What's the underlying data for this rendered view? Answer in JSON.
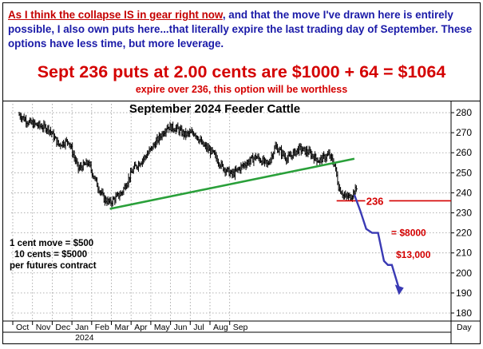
{
  "commentary": {
    "line1_red": "As I think the collapse IS in gear right now",
    "line1_rest": ", and that the move I've drawn here is entirely possible, I also own puts here...that literally expire the last trading day of September. These options have less time, but more leverage.",
    "headline": "Sept 236 puts at 2.00 cents are $1000 + 64 = $1064",
    "subline": "expire over 236, this option will be worthless"
  },
  "chart_data": {
    "type": "line",
    "title": "September 2024 Feeder Cattle",
    "ylim": [
      176,
      286
    ],
    "y_ticks": [
      180,
      190,
      200,
      210,
      220,
      230,
      240,
      250,
      260,
      270,
      280
    ],
    "x_labels": [
      "Oct",
      "Nov",
      "Dec",
      "Jan",
      "Feb",
      "Mar",
      "Apr",
      "May",
      "Jun",
      "Jul",
      "Aug",
      "Sep"
    ],
    "year_label": "2024",
    "axis_unit_label": "Day",
    "colors": {
      "bars": "#000000",
      "trendline": "#2aa03a",
      "strike_line": "#d40000",
      "projection": "#3a3ab4",
      "annotation_text": "#d40000"
    },
    "price_path": [
      [
        0,
        279
      ],
      [
        0.5,
        275
      ],
      [
        1.5,
        272
      ],
      [
        2,
        264
      ],
      [
        2.5,
        266
      ],
      [
        3,
        252
      ],
      [
        3.5,
        255
      ],
      [
        4,
        243
      ],
      [
        4.3,
        237
      ],
      [
        4.6,
        235
      ],
      [
        5.2,
        240
      ],
      [
        5.8,
        252
      ],
      [
        6.4,
        258
      ],
      [
        7.0,
        266
      ],
      [
        7.5,
        273
      ],
      [
        8.0,
        272
      ],
      [
        8.4,
        269
      ],
      [
        8.9,
        270
      ],
      [
        9.3,
        264
      ],
      [
        9.8,
        260
      ],
      [
        10.3,
        253
      ],
      [
        10.8,
        249
      ],
      [
        11.4,
        254
      ],
      [
        12.0,
        258
      ],
      [
        12.6,
        254
      ],
      [
        13.0,
        263
      ],
      [
        13.6,
        257
      ],
      [
        14.2,
        262
      ],
      [
        14.7,
        260
      ],
      [
        15.2,
        256
      ],
      [
        15.7,
        259
      ],
      [
        16.0,
        254
      ],
      [
        16.2,
        243
      ],
      [
        16.5,
        238
      ],
      [
        16.8,
        238
      ],
      [
        17.1,
        242
      ]
    ],
    "trendline": {
      "from": [
        4.6,
        232
      ],
      "to": [
        17.0,
        257
      ]
    },
    "strike": {
      "price": 236,
      "label": "236"
    },
    "projection_path": [
      [
        17.0,
        239
      ],
      [
        17.3,
        231
      ],
      [
        17.6,
        222
      ],
      [
        17.9,
        220
      ],
      [
        18.2,
        220
      ],
      [
        18.5,
        206
      ],
      [
        18.7,
        204
      ],
      [
        18.9,
        204
      ],
      [
        19.3,
        191
      ]
    ],
    "annotations": [
      {
        "text": "= $8000",
        "x": 18.3,
        "price": 220
      },
      {
        "text": "$13,000",
        "x": 18.3,
        "price": 209
      }
    ],
    "notes": [
      "1 cent move = $500",
      "10 cents = $5000",
      "per futures contract"
    ]
  }
}
